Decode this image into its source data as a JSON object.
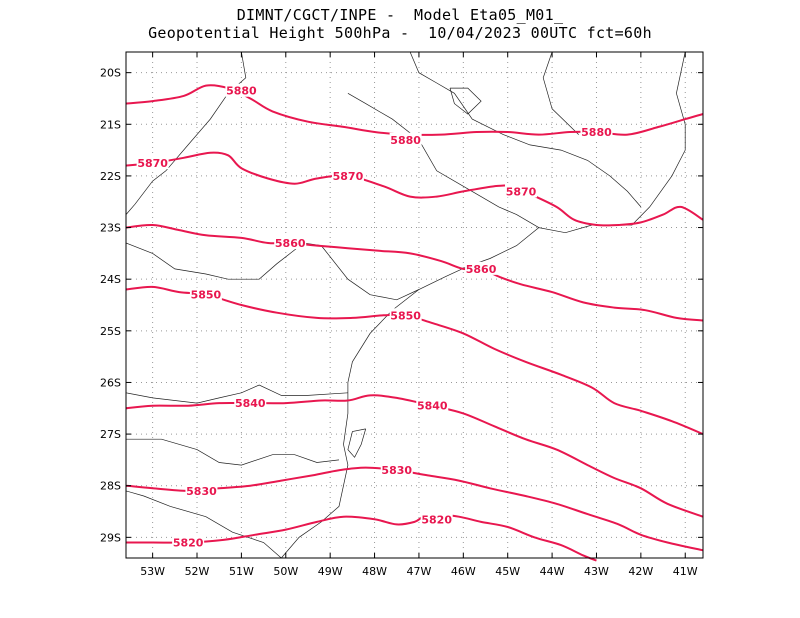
{
  "title": {
    "line1": "DIMNT/CGCT/INPE -  Model Eta05_M01_",
    "line2": "Geopotential Height 500hPa -  10/04/2023 00UTC fct=60h"
  },
  "colors": {
    "contour": "#e8174f",
    "coast": "#222222",
    "frame": "#000000"
  },
  "map": {
    "lon_range": [
      -53.6,
      -40.6
    ],
    "lat_range": [
      -29.4,
      -19.6
    ],
    "lon_ticks": [
      {
        "lon": -53,
        "label": "53W"
      },
      {
        "lon": -52,
        "label": "52W"
      },
      {
        "lon": -51,
        "label": "51W"
      },
      {
        "lon": -50,
        "label": "50W"
      },
      {
        "lon": -49,
        "label": "49W"
      },
      {
        "lon": -48,
        "label": "48W"
      },
      {
        "lon": -47,
        "label": "47W"
      },
      {
        "lon": -46,
        "label": "46W"
      },
      {
        "lon": -45,
        "label": "45W"
      },
      {
        "lon": -44,
        "label": "44W"
      },
      {
        "lon": -43,
        "label": "43W"
      },
      {
        "lon": -42,
        "label": "42W"
      },
      {
        "lon": -41,
        "label": "41W"
      }
    ],
    "lat_ticks": [
      {
        "lat": -20,
        "label": "20S"
      },
      {
        "lat": -21,
        "label": "21S"
      },
      {
        "lat": -22,
        "label": "22S"
      },
      {
        "lat": -23,
        "label": "23S"
      },
      {
        "lat": -24,
        "label": "24S"
      },
      {
        "lat": -25,
        "label": "25S"
      },
      {
        "lat": -26,
        "label": "26S"
      },
      {
        "lat": -27,
        "label": "27S"
      },
      {
        "lat": -28,
        "label": "28S"
      },
      {
        "lat": -29,
        "label": "29S"
      }
    ],
    "contours": [
      {
        "value": 5880,
        "label": "5880",
        "labels": [
          [
            -51.0,
            -20.35
          ],
          [
            -47.3,
            -21.3
          ],
          [
            -43.0,
            -21.15
          ]
        ],
        "points": [
          [
            -53.6,
            -20.6
          ],
          [
            -53.0,
            -20.55
          ],
          [
            -52.3,
            -20.45
          ],
          [
            -51.8,
            -20.25
          ],
          [
            -51.3,
            -20.3
          ],
          [
            -50.8,
            -20.5
          ],
          [
            -50.3,
            -20.75
          ],
          [
            -49.5,
            -20.95
          ],
          [
            -48.7,
            -21.05
          ],
          [
            -48.0,
            -21.15
          ],
          [
            -47.3,
            -21.2
          ],
          [
            -46.5,
            -21.2
          ],
          [
            -45.7,
            -21.15
          ],
          [
            -45.0,
            -21.15
          ],
          [
            -44.3,
            -21.2
          ],
          [
            -43.6,
            -21.15
          ],
          [
            -43.0,
            -21.15
          ],
          [
            -42.3,
            -21.2
          ],
          [
            -41.6,
            -21.05
          ],
          [
            -41.0,
            -20.9
          ],
          [
            -40.6,
            -20.8
          ]
        ]
      },
      {
        "value": 5870,
        "label": "5870",
        "labels": [
          [
            -53.0,
            -21.75
          ],
          [
            -48.6,
            -22.0
          ],
          [
            -44.7,
            -22.3
          ]
        ],
        "points": [
          [
            -53.6,
            -21.8
          ],
          [
            -53.0,
            -21.75
          ],
          [
            -52.3,
            -21.65
          ],
          [
            -51.7,
            -21.55
          ],
          [
            -51.3,
            -21.6
          ],
          [
            -51.0,
            -21.85
          ],
          [
            -50.4,
            -22.05
          ],
          [
            -49.8,
            -22.15
          ],
          [
            -49.3,
            -22.05
          ],
          [
            -48.6,
            -22.0
          ],
          [
            -47.8,
            -22.2
          ],
          [
            -47.2,
            -22.4
          ],
          [
            -46.6,
            -22.4
          ],
          [
            -46.0,
            -22.3
          ],
          [
            -45.3,
            -22.2
          ],
          [
            -44.9,
            -22.2
          ],
          [
            -44.5,
            -22.35
          ],
          [
            -43.9,
            -22.6
          ],
          [
            -43.5,
            -22.85
          ],
          [
            -43.0,
            -22.95
          ],
          [
            -42.5,
            -22.95
          ],
          [
            -42.0,
            -22.9
          ],
          [
            -41.5,
            -22.75
          ],
          [
            -41.1,
            -22.6
          ],
          [
            -40.6,
            -22.85
          ]
        ]
      },
      {
        "value": 5860,
        "label": "5860",
        "labels": [
          [
            -49.9,
            -23.3
          ],
          [
            -45.6,
            -23.8
          ]
        ],
        "points": [
          [
            -53.6,
            -23.0
          ],
          [
            -53.0,
            -22.95
          ],
          [
            -52.4,
            -23.05
          ],
          [
            -51.8,
            -23.15
          ],
          [
            -51.0,
            -23.2
          ],
          [
            -50.4,
            -23.3
          ],
          [
            -49.9,
            -23.3
          ],
          [
            -49.3,
            -23.35
          ],
          [
            -48.6,
            -23.4
          ],
          [
            -47.9,
            -23.45
          ],
          [
            -47.2,
            -23.5
          ],
          [
            -46.5,
            -23.65
          ],
          [
            -46.0,
            -23.8
          ],
          [
            -45.6,
            -23.8
          ],
          [
            -45.2,
            -23.95
          ],
          [
            -44.7,
            -24.1
          ],
          [
            -44.0,
            -24.25
          ],
          [
            -43.3,
            -24.45
          ],
          [
            -42.6,
            -24.55
          ],
          [
            -41.9,
            -24.6
          ],
          [
            -41.2,
            -24.75
          ],
          [
            -40.6,
            -24.8
          ]
        ]
      },
      {
        "value": 5850,
        "label": "5850",
        "labels": [
          [
            -51.8,
            -24.3
          ],
          [
            -47.3,
            -24.7
          ]
        ],
        "points": [
          [
            -53.6,
            -24.2
          ],
          [
            -53.0,
            -24.15
          ],
          [
            -52.4,
            -24.25
          ],
          [
            -51.8,
            -24.3
          ],
          [
            -51.0,
            -24.5
          ],
          [
            -50.2,
            -24.65
          ],
          [
            -49.3,
            -24.75
          ],
          [
            -48.5,
            -24.75
          ],
          [
            -47.8,
            -24.7
          ],
          [
            -47.3,
            -24.7
          ],
          [
            -46.7,
            -24.85
          ],
          [
            -46.0,
            -25.05
          ],
          [
            -45.3,
            -25.35
          ],
          [
            -44.6,
            -25.6
          ],
          [
            -43.8,
            -25.85
          ],
          [
            -43.1,
            -26.1
          ],
          [
            -42.6,
            -26.4
          ],
          [
            -42.0,
            -26.55
          ],
          [
            -41.3,
            -26.75
          ],
          [
            -40.6,
            -27.0
          ]
        ]
      },
      {
        "value": 5840,
        "label": "5840",
        "labels": [
          [
            -50.8,
            -26.4
          ],
          [
            -46.7,
            -26.45
          ]
        ],
        "points": [
          [
            -53.6,
            -26.5
          ],
          [
            -53.0,
            -26.45
          ],
          [
            -52.2,
            -26.45
          ],
          [
            -51.5,
            -26.4
          ],
          [
            -50.8,
            -26.4
          ],
          [
            -50.0,
            -26.4
          ],
          [
            -49.2,
            -26.35
          ],
          [
            -48.6,
            -26.35
          ],
          [
            -48.1,
            -26.25
          ],
          [
            -47.5,
            -26.3
          ],
          [
            -46.7,
            -26.45
          ],
          [
            -46.0,
            -26.6
          ],
          [
            -45.3,
            -26.85
          ],
          [
            -44.6,
            -27.1
          ],
          [
            -43.9,
            -27.3
          ],
          [
            -43.2,
            -27.6
          ],
          [
            -42.6,
            -27.85
          ],
          [
            -42.0,
            -28.05
          ],
          [
            -41.4,
            -28.35
          ],
          [
            -40.6,
            -28.6
          ]
        ]
      },
      {
        "value": 5830,
        "label": "5830",
        "labels": [
          [
            -51.9,
            -28.1
          ],
          [
            -47.5,
            -27.7
          ]
        ],
        "points": [
          [
            -53.6,
            -28.0
          ],
          [
            -53.0,
            -28.05
          ],
          [
            -52.2,
            -28.1
          ],
          [
            -51.5,
            -28.05
          ],
          [
            -50.8,
            -28.0
          ],
          [
            -50.1,
            -27.9
          ],
          [
            -49.4,
            -27.8
          ],
          [
            -48.8,
            -27.7
          ],
          [
            -48.2,
            -27.65
          ],
          [
            -47.5,
            -27.7
          ],
          [
            -46.8,
            -27.8
          ],
          [
            -46.1,
            -27.9
          ],
          [
            -45.4,
            -28.05
          ],
          [
            -44.6,
            -28.2
          ],
          [
            -43.9,
            -28.35
          ],
          [
            -43.2,
            -28.55
          ],
          [
            -42.5,
            -28.75
          ],
          [
            -42.0,
            -28.95
          ],
          [
            -41.4,
            -29.1
          ],
          [
            -40.6,
            -29.25
          ]
        ]
      },
      {
        "value": 5820,
        "label": "5820",
        "labels": [
          [
            -52.2,
            -29.1
          ],
          [
            -46.6,
            -28.65
          ]
        ],
        "points": [
          [
            -53.6,
            -29.1
          ],
          [
            -53.0,
            -29.1
          ],
          [
            -52.2,
            -29.1
          ],
          [
            -51.4,
            -29.05
          ],
          [
            -50.7,
            -28.95
          ],
          [
            -50.0,
            -28.85
          ],
          [
            -49.3,
            -28.7
          ],
          [
            -48.7,
            -28.6
          ],
          [
            -48.0,
            -28.65
          ],
          [
            -47.5,
            -28.75
          ],
          [
            -47.1,
            -28.7
          ],
          [
            -46.9,
            -28.6
          ],
          [
            -46.6,
            -28.55
          ],
          [
            -46.1,
            -28.6
          ],
          [
            -45.6,
            -28.7
          ],
          [
            -45.0,
            -28.8
          ],
          [
            -44.4,
            -29.0
          ],
          [
            -43.8,
            -29.15
          ],
          [
            -43.3,
            -29.35
          ],
          [
            -43.0,
            -29.45
          ]
        ]
      }
    ],
    "coast_lines": [
      [
        [
          -41.0,
          -19.6
        ],
        [
          -41.2,
          -20.4
        ],
        [
          -41.0,
          -21.0
        ],
        [
          -41.0,
          -21.5
        ],
        [
          -41.3,
          -22.0
        ],
        [
          -41.8,
          -22.6
        ],
        [
          -42.2,
          -22.95
        ],
        [
          -43.1,
          -22.95
        ],
        [
          -43.7,
          -23.1
        ],
        [
          -44.3,
          -23.0
        ],
        [
          -44.8,
          -23.35
        ],
        [
          -45.4,
          -23.6
        ],
        [
          -45.9,
          -23.75
        ],
        [
          -46.4,
          -23.95
        ],
        [
          -47.0,
          -24.2
        ],
        [
          -47.6,
          -24.6
        ],
        [
          -48.1,
          -25.05
        ],
        [
          -48.5,
          -25.6
        ],
        [
          -48.6,
          -26.0
        ],
        [
          -48.6,
          -26.6
        ],
        [
          -48.7,
          -27.2
        ],
        [
          -48.6,
          -27.6
        ],
        [
          -48.8,
          -28.4
        ],
        [
          -49.2,
          -28.7
        ],
        [
          -49.7,
          -29.0
        ],
        [
          -50.1,
          -29.4
        ]
      ],
      [
        [
          -53.6,
          -26.2
        ],
        [
          -53.0,
          -26.3
        ],
        [
          -52.0,
          -26.4
        ],
        [
          -51.5,
          -26.3
        ],
        [
          -51.0,
          -26.2
        ],
        [
          -50.6,
          -26.05
        ],
        [
          -50.1,
          -26.25
        ],
        [
          -49.5,
          -26.25
        ],
        [
          -48.6,
          -26.2
        ]
      ],
      [
        [
          -53.6,
          -27.1
        ],
        [
          -52.8,
          -27.1
        ],
        [
          -52.0,
          -27.3
        ],
        [
          -51.5,
          -27.55
        ],
        [
          -51.0,
          -27.6
        ],
        [
          -50.3,
          -27.4
        ],
        [
          -49.8,
          -27.4
        ],
        [
          -49.3,
          -27.55
        ],
        [
          -48.8,
          -27.5
        ]
      ],
      [
        [
          -51.0,
          -19.6
        ],
        [
          -50.9,
          -20.1
        ],
        [
          -51.3,
          -20.4
        ],
        [
          -51.7,
          -20.9
        ],
        [
          -52.2,
          -21.4
        ],
        [
          -52.7,
          -21.9
        ],
        [
          -53.0,
          -22.1
        ],
        [
          -53.4,
          -22.55
        ],
        [
          -53.6,
          -22.75
        ]
      ],
      [
        [
          -53.6,
          -23.3
        ],
        [
          -53.0,
          -23.5
        ],
        [
          -52.5,
          -23.8
        ],
        [
          -51.8,
          -23.9
        ],
        [
          -51.3,
          -24.0
        ],
        [
          -50.6,
          -24.0
        ],
        [
          -50.2,
          -23.7
        ],
        [
          -49.9,
          -23.5
        ],
        [
          -49.6,
          -23.3
        ],
        [
          -49.2,
          -23.35
        ],
        [
          -48.6,
          -24.0
        ],
        [
          -48.1,
          -24.3
        ],
        [
          -47.5,
          -24.4
        ],
        [
          -47.0,
          -24.2
        ]
      ],
      [
        [
          -48.6,
          -20.4
        ],
        [
          -48.2,
          -20.6
        ],
        [
          -47.6,
          -20.9
        ],
        [
          -47.0,
          -21.3
        ],
        [
          -46.6,
          -21.9
        ],
        [
          -45.8,
          -22.3
        ],
        [
          -45.2,
          -22.6
        ],
        [
          -44.8,
          -22.75
        ],
        [
          -44.3,
          -23.0
        ]
      ],
      [
        [
          -47.2,
          -19.6
        ],
        [
          -47.0,
          -20.0
        ],
        [
          -46.6,
          -20.2
        ],
        [
          -46.2,
          -20.4
        ],
        [
          -45.8,
          -20.9
        ],
        [
          -45.1,
          -21.2
        ],
        [
          -44.5,
          -21.4
        ],
        [
          -43.8,
          -21.5
        ],
        [
          -43.2,
          -21.7
        ],
        [
          -42.7,
          -22.0
        ],
        [
          -42.3,
          -22.3
        ],
        [
          -42.0,
          -22.6
        ]
      ],
      [
        [
          -50.1,
          -29.4
        ],
        [
          -50.5,
          -29.1
        ],
        [
          -51.2,
          -28.9
        ],
        [
          -51.8,
          -28.6
        ],
        [
          -52.6,
          -28.4
        ],
        [
          -53.2,
          -28.2
        ],
        [
          -53.6,
          -28.1
        ]
      ],
      [
        [
          -44.0,
          -19.6
        ],
        [
          -44.2,
          -20.1
        ],
        [
          -44.0,
          -20.7
        ],
        [
          -43.4,
          -21.2
        ]
      ],
      [
        [
          -48.2,
          -26.9
        ],
        [
          -48.5,
          -26.95
        ],
        [
          -48.6,
          -27.3
        ],
        [
          -48.45,
          -27.45
        ],
        [
          -48.3,
          -27.2
        ],
        [
          -48.2,
          -26.9
        ]
      ],
      [
        [
          -46.3,
          -20.3
        ],
        [
          -45.9,
          -20.3
        ],
        [
          -45.6,
          -20.55
        ],
        [
          -45.9,
          -20.8
        ],
        [
          -46.2,
          -20.6
        ],
        [
          -46.3,
          -20.3
        ]
      ]
    ]
  }
}
